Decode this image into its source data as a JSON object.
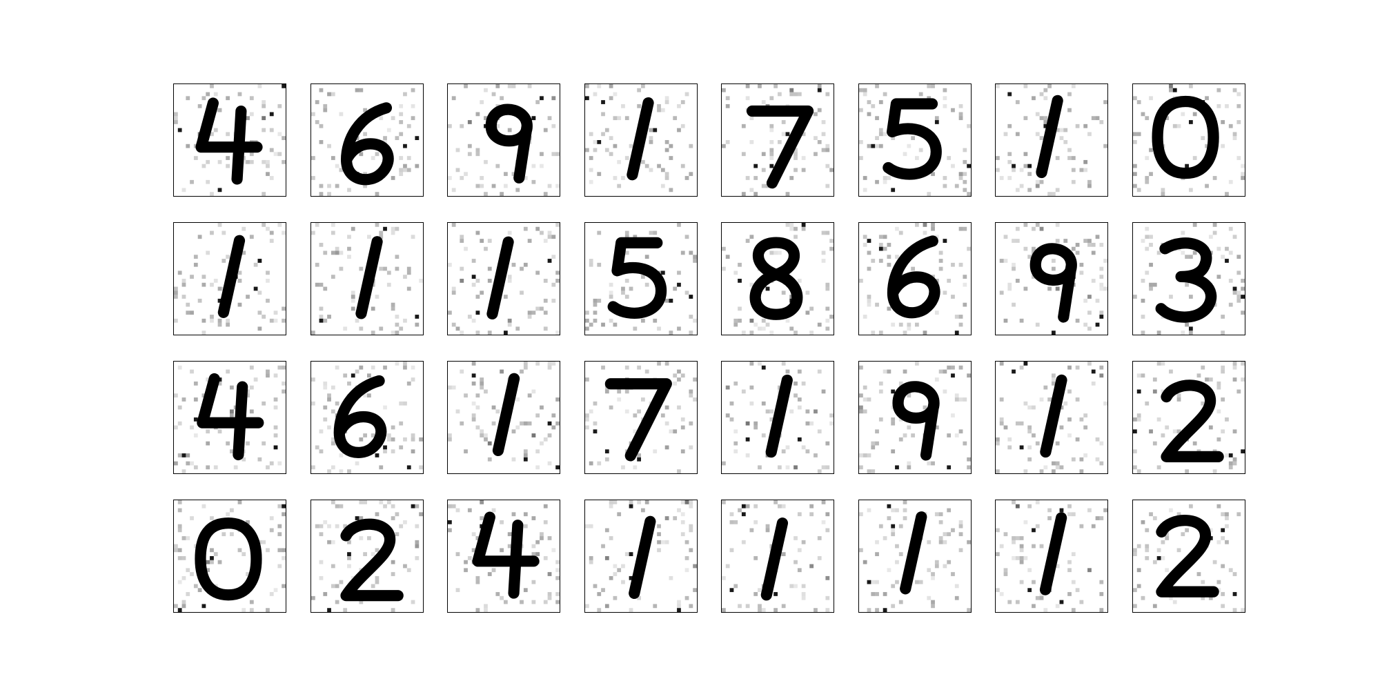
{
  "figure": {
    "kind": "generated-digit-sample-grid",
    "rows": 4,
    "cols": 8,
    "background_color": "#ffffff",
    "ink_color": "#000000",
    "frame_color": "#000000",
    "panels": [
      {
        "digit": "4"
      },
      {
        "digit": "6"
      },
      {
        "digit": "9"
      },
      {
        "digit": "1"
      },
      {
        "digit": "7"
      },
      {
        "digit": "5"
      },
      {
        "digit": "1"
      },
      {
        "digit": "0"
      },
      {
        "digit": "1"
      },
      {
        "digit": "1"
      },
      {
        "digit": "1"
      },
      {
        "digit": "5"
      },
      {
        "digit": "8"
      },
      {
        "digit": "6"
      },
      {
        "digit": "9"
      },
      {
        "digit": "3"
      },
      {
        "digit": "4"
      },
      {
        "digit": "6"
      },
      {
        "digit": "1"
      },
      {
        "digit": "7"
      },
      {
        "digit": "1"
      },
      {
        "digit": "9"
      },
      {
        "digit": "1"
      },
      {
        "digit": "2"
      },
      {
        "digit": "0"
      },
      {
        "digit": "2"
      },
      {
        "digit": "4"
      },
      {
        "digit": "1"
      },
      {
        "digit": "1"
      },
      {
        "digit": "1"
      },
      {
        "digit": "1"
      },
      {
        "digit": "2"
      }
    ]
  }
}
